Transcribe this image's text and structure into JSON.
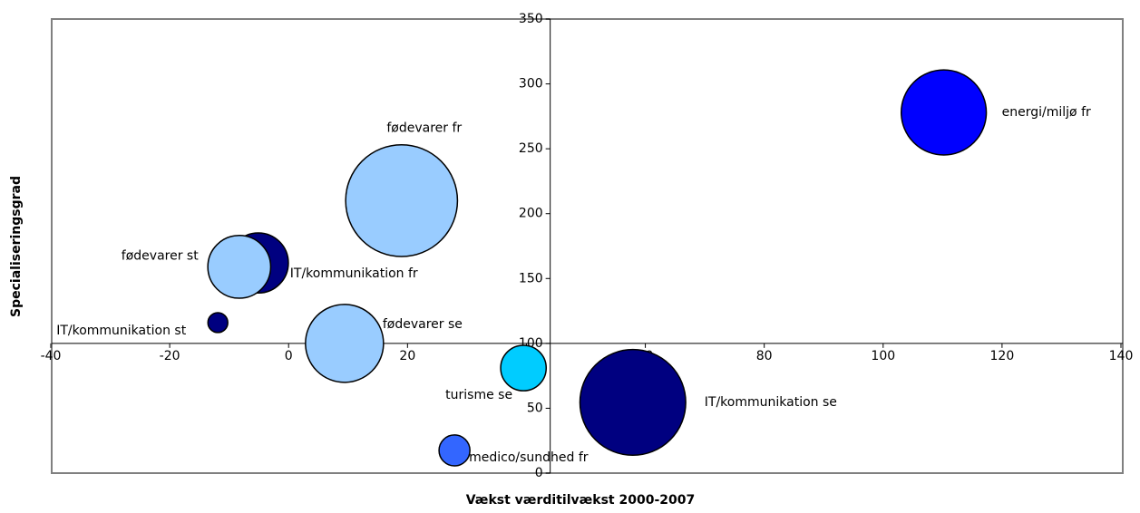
{
  "chart_data": {
    "type": "bubble",
    "x_label": "Vækst værditilvækst 2000-2007",
    "y_label": "Specialiseringsgrad",
    "xlim": [
      -40,
      140
    ],
    "xticks": [
      -40,
      -20,
      0,
      20,
      40,
      60,
      80,
      100,
      120,
      140
    ],
    "ylim": [
      0,
      350
    ],
    "yticks": [
      0,
      50,
      100,
      150,
      200,
      250,
      300,
      350
    ],
    "x_axis_at_y": 100,
    "y_axis_at_x": 44,
    "grid": false,
    "points": [
      {
        "label": "energi/miljø fr",
        "x": 110.2,
        "y": 278,
        "size": 22,
        "color": "#0000ff"
      },
      {
        "label": "fødevarer fr",
        "x": 19,
        "y": 210,
        "size": 38,
        "color": "#99ccff"
      },
      {
        "label": "IT/kommunikation fr",
        "x": -5.1,
        "y": 162,
        "size": 11,
        "color": "#000080"
      },
      {
        "label": "fødevarer st",
        "x": -8.3,
        "y": 159,
        "size": 12,
        "color": "#99ccff"
      },
      {
        "label": "IT/kommunikation st",
        "x": -11.9,
        "y": 116,
        "size": 1.2,
        "color": "#000080"
      },
      {
        "label": "fødevarer se",
        "x": 9.4,
        "y": 100,
        "size": 18.5,
        "color": "#99ccff"
      },
      {
        "label": "turisme se",
        "x": 39.5,
        "y": 81,
        "size": 6.3,
        "color": "#00ccff"
      },
      {
        "label": "IT/kommunikation se",
        "x": 57.9,
        "y": 54.5,
        "size": 34,
        "color": "#000080"
      },
      {
        "label": "medico/sundhed fr",
        "x": 27.9,
        "y": 17.5,
        "size": 2.9,
        "color": "#3366ff"
      }
    ]
  }
}
